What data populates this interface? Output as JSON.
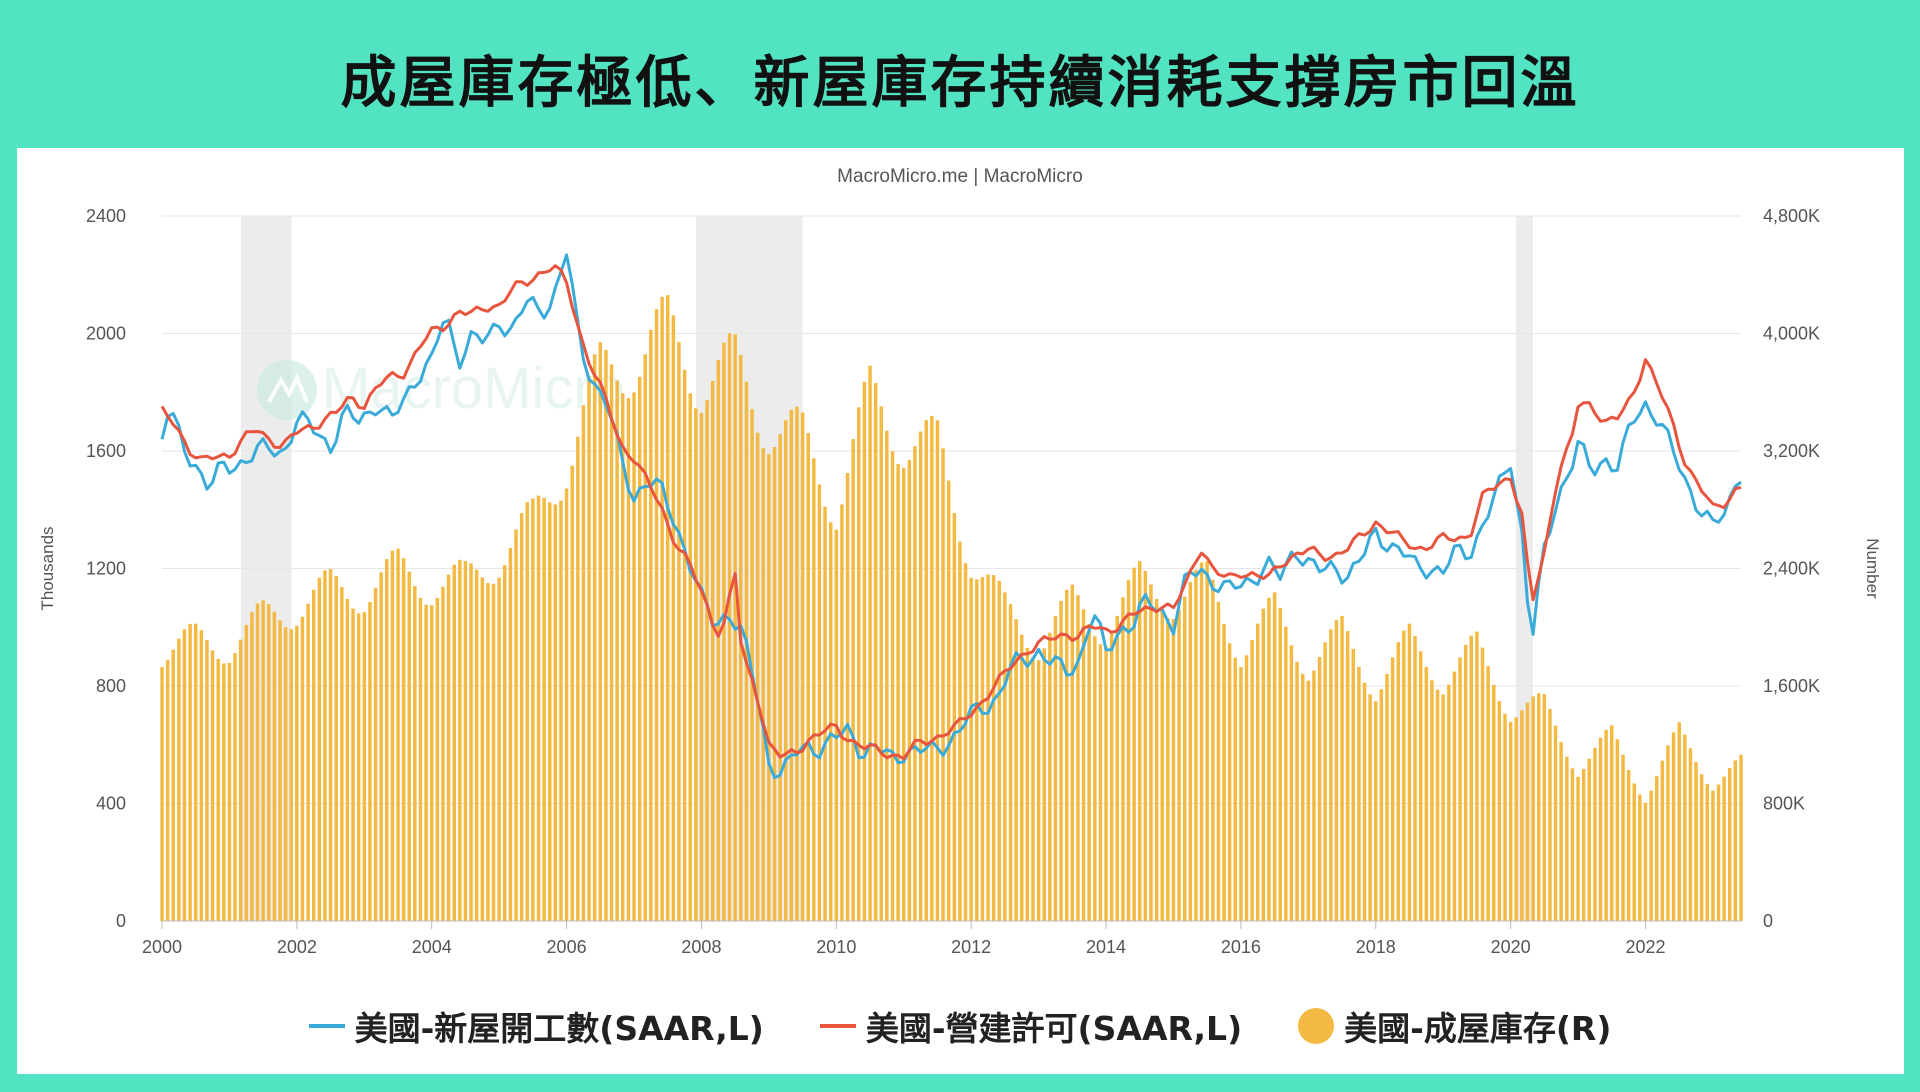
{
  "title": "成屋庫存極低、新屋庫存持續消耗支撐房市回溫",
  "chart_data": {
    "type": "bar+line",
    "source_label": "MacroMicro.me | MacroMicro",
    "watermark": "MacroMicro",
    "x_ticks": [
      "2000",
      "2002",
      "2004",
      "2006",
      "2008",
      "2010",
      "2012",
      "2014",
      "2016",
      "2018",
      "2020",
      "2022"
    ],
    "x_range": [
      "2000-01",
      "2023-06"
    ],
    "left_axis": {
      "label": "Thousands",
      "ticks": [
        "0",
        "400",
        "800",
        "1200",
        "1600",
        "2000",
        "2400"
      ],
      "range": [
        0,
        2400
      ]
    },
    "right_axis": {
      "label": "Number",
      "ticks": [
        "0",
        "800K",
        "1,600K",
        "2,400K",
        "3,200K",
        "4,000K",
        "4,800K"
      ],
      "range": [
        0,
        4800000
      ]
    },
    "grid": true,
    "recessions": [
      [
        2001.17,
        2001.92
      ],
      [
        2007.92,
        2009.5
      ],
      [
        2020.08,
        2020.33
      ]
    ],
    "legend_position": "bottom",
    "colors": {
      "starts": "#3aabd8",
      "permits": "#e8553e",
      "inventory": "#f4b942",
      "recession": "#ececec",
      "grid": "#e6e6e6"
    },
    "series": [
      {
        "name": "美國-新屋開工數(SAAR,L)",
        "type": "line",
        "axis": "left",
        "color": "#3aabd8",
        "points": [
          [
            2000.0,
            1640
          ],
          [
            2000.1,
            1740
          ],
          [
            2000.3,
            1620
          ],
          [
            2000.5,
            1560
          ],
          [
            2000.7,
            1470
          ],
          [
            2000.9,
            1540
          ],
          [
            2001.1,
            1560
          ],
          [
            2001.4,
            1590
          ],
          [
            2001.6,
            1610
          ],
          [
            2001.8,
            1600
          ],
          [
            2002.0,
            1700
          ],
          [
            2002.3,
            1670
          ],
          [
            2002.5,
            1620
          ],
          [
            2002.7,
            1720
          ],
          [
            2002.9,
            1700
          ],
          [
            2003.2,
            1770
          ],
          [
            2003.4,
            1690
          ],
          [
            2003.6,
            1780
          ],
          [
            2003.8,
            1870
          ],
          [
            2004.0,
            1900
          ],
          [
            2004.2,
            2060
          ],
          [
            2004.4,
            1920
          ],
          [
            2004.6,
            1990
          ],
          [
            2004.8,
            1960
          ],
          [
            2005.0,
            2050
          ],
          [
            2005.2,
            2010
          ],
          [
            2005.4,
            2100
          ],
          [
            2005.6,
            2080
          ],
          [
            2005.8,
            2120
          ],
          [
            2006.0,
            2270
          ],
          [
            2006.2,
            1960
          ],
          [
            2006.4,
            1840
          ],
          [
            2006.6,
            1760
          ],
          [
            2006.8,
            1570
          ],
          [
            2007.0,
            1450
          ],
          [
            2007.2,
            1500
          ],
          [
            2007.4,
            1460
          ],
          [
            2007.6,
            1370
          ],
          [
            2007.8,
            1240
          ],
          [
            2008.0,
            1090
          ],
          [
            2008.2,
            1010
          ],
          [
            2008.4,
            1060
          ],
          [
            2008.6,
            970
          ],
          [
            2008.8,
            800
          ],
          [
            2009.0,
            550
          ],
          [
            2009.2,
            490
          ],
          [
            2009.4,
            570
          ],
          [
            2009.6,
            610
          ],
          [
            2009.8,
            580
          ],
          [
            2010.0,
            620
          ],
          [
            2010.2,
            660
          ],
          [
            2010.4,
            570
          ],
          [
            2010.6,
            580
          ],
          [
            2010.8,
            560
          ],
          [
            2011.0,
            580
          ],
          [
            2011.2,
            570
          ],
          [
            2011.4,
            580
          ],
          [
            2011.6,
            610
          ],
          [
            2011.8,
            630
          ],
          [
            2012.0,
            700
          ],
          [
            2012.2,
            740
          ],
          [
            2012.4,
            760
          ],
          [
            2012.6,
            860
          ],
          [
            2012.8,
            900
          ],
          [
            2013.0,
            920
          ],
          [
            2013.2,
            870
          ],
          [
            2013.4,
            850
          ],
          [
            2013.6,
            890
          ],
          [
            2013.8,
            1050
          ],
          [
            2014.0,
            910
          ],
          [
            2014.2,
            1000
          ],
          [
            2014.4,
            1010
          ],
          [
            2014.6,
            1080
          ],
          [
            2014.8,
            1070
          ],
          [
            2015.0,
            1010
          ],
          [
            2015.2,
            1160
          ],
          [
            2015.4,
            1200
          ],
          [
            2015.6,
            1160
          ],
          [
            2015.8,
            1120
          ],
          [
            2016.0,
            1140
          ],
          [
            2016.2,
            1180
          ],
          [
            2016.4,
            1210
          ],
          [
            2016.6,
            1160
          ],
          [
            2016.8,
            1280
          ],
          [
            2017.0,
            1220
          ],
          [
            2017.2,
            1180
          ],
          [
            2017.4,
            1210
          ],
          [
            2017.6,
            1180
          ],
          [
            2017.8,
            1230
          ],
          [
            2018.0,
            1320
          ],
          [
            2018.2,
            1290
          ],
          [
            2018.4,
            1250
          ],
          [
            2018.6,
            1200
          ],
          [
            2018.8,
            1210
          ],
          [
            2019.0,
            1190
          ],
          [
            2019.2,
            1250
          ],
          [
            2019.4,
            1260
          ],
          [
            2019.6,
            1360
          ],
          [
            2019.8,
            1450
          ],
          [
            2020.0,
            1570
          ],
          [
            2020.2,
            1280
          ],
          [
            2020.3,
            930
          ],
          [
            2020.5,
            1250
          ],
          [
            2020.7,
            1450
          ],
          [
            2020.9,
            1560
          ],
          [
            2021.0,
            1620
          ],
          [
            2021.2,
            1520
          ],
          [
            2021.4,
            1580
          ],
          [
            2021.6,
            1550
          ],
          [
            2021.8,
            1690
          ],
          [
            2022.0,
            1760
          ],
          [
            2022.2,
            1720
          ],
          [
            2022.4,
            1590
          ],
          [
            2022.6,
            1490
          ],
          [
            2022.8,
            1420
          ],
          [
            2023.0,
            1340
          ],
          [
            2023.2,
            1380
          ],
          [
            2023.4,
            1560
          ],
          [
            2023.5,
            1430
          ]
        ]
      },
      {
        "name": "美國-營建許可(SAAR,L)",
        "type": "line",
        "axis": "left",
        "color": "#e8553e",
        "points": [
          [
            2000.0,
            1730
          ],
          [
            2000.2,
            1690
          ],
          [
            2000.4,
            1610
          ],
          [
            2000.6,
            1560
          ],
          [
            2000.8,
            1580
          ],
          [
            2001.0,
            1590
          ],
          [
            2001.2,
            1640
          ],
          [
            2001.4,
            1670
          ],
          [
            2001.6,
            1640
          ],
          [
            2001.8,
            1620
          ],
          [
            2002.0,
            1660
          ],
          [
            2002.2,
            1680
          ],
          [
            2002.4,
            1710
          ],
          [
            2002.6,
            1730
          ],
          [
            2002.8,
            1780
          ],
          [
            2003.0,
            1760
          ],
          [
            2003.2,
            1820
          ],
          [
            2003.4,
            1850
          ],
          [
            2003.6,
            1870
          ],
          [
            2003.8,
            1950
          ],
          [
            2004.0,
            2000
          ],
          [
            2004.2,
            2030
          ],
          [
            2004.4,
            2080
          ],
          [
            2004.6,
            2060
          ],
          [
            2004.8,
            2090
          ],
          [
            2005.0,
            2100
          ],
          [
            2005.2,
            2150
          ],
          [
            2005.4,
            2170
          ],
          [
            2005.6,
            2210
          ],
          [
            2005.8,
            2230
          ],
          [
            2006.0,
            2170
          ],
          [
            2006.2,
            2000
          ],
          [
            2006.4,
            1870
          ],
          [
            2006.6,
            1760
          ],
          [
            2006.8,
            1620
          ],
          [
            2007.0,
            1580
          ],
          [
            2007.2,
            1490
          ],
          [
            2007.4,
            1410
          ],
          [
            2007.6,
            1300
          ],
          [
            2007.8,
            1220
          ],
          [
            2008.0,
            1120
          ],
          [
            2008.2,
            1000
          ],
          [
            2008.3,
            980
          ],
          [
            2008.5,
            1180
          ],
          [
            2008.6,
            900
          ],
          [
            2008.8,
            800
          ],
          [
            2009.0,
            600
          ],
          [
            2009.2,
            550
          ],
          [
            2009.4,
            580
          ],
          [
            2009.6,
            620
          ],
          [
            2009.8,
            640
          ],
          [
            2010.0,
            660
          ],
          [
            2010.2,
            620
          ],
          [
            2010.4,
            590
          ],
          [
            2010.6,
            580
          ],
          [
            2010.8,
            570
          ],
          [
            2011.0,
            560
          ],
          [
            2011.2,
            600
          ],
          [
            2011.4,
            620
          ],
          [
            2011.6,
            640
          ],
          [
            2011.8,
            660
          ],
          [
            2012.0,
            710
          ],
          [
            2012.2,
            760
          ],
          [
            2012.4,
            810
          ],
          [
            2012.6,
            870
          ],
          [
            2012.8,
            920
          ],
          [
            2013.0,
            940
          ],
          [
            2013.2,
            960
          ],
          [
            2013.4,
            980
          ],
          [
            2013.6,
            970
          ],
          [
            2013.8,
            1000
          ],
          [
            2014.0,
            990
          ],
          [
            2014.2,
            1010
          ],
          [
            2014.4,
            1040
          ],
          [
            2014.6,
            1060
          ],
          [
            2014.8,
            1080
          ],
          [
            2015.0,
            1060
          ],
          [
            2015.2,
            1150
          ],
          [
            2015.4,
            1280
          ],
          [
            2015.6,
            1190
          ],
          [
            2015.8,
            1160
          ],
          [
            2016.0,
            1190
          ],
          [
            2016.2,
            1180
          ],
          [
            2016.4,
            1160
          ],
          [
            2016.6,
            1220
          ],
          [
            2016.8,
            1250
          ],
          [
            2017.0,
            1260
          ],
          [
            2017.2,
            1240
          ],
          [
            2017.4,
            1250
          ],
          [
            2017.6,
            1270
          ],
          [
            2017.8,
            1310
          ],
          [
            2018.0,
            1360
          ],
          [
            2018.2,
            1330
          ],
          [
            2018.4,
            1290
          ],
          [
            2018.6,
            1270
          ],
          [
            2018.8,
            1280
          ],
          [
            2019.0,
            1300
          ],
          [
            2019.2,
            1300
          ],
          [
            2019.4,
            1320
          ],
          [
            2019.6,
            1450
          ],
          [
            2019.8,
            1480
          ],
          [
            2020.0,
            1520
          ],
          [
            2020.2,
            1350
          ],
          [
            2020.3,
            1060
          ],
          [
            2020.5,
            1250
          ],
          [
            2020.7,
            1530
          ],
          [
            2020.9,
            1630
          ],
          [
            2021.0,
            1750
          ],
          [
            2021.2,
            1760
          ],
          [
            2021.4,
            1700
          ],
          [
            2021.6,
            1710
          ],
          [
            2021.8,
            1780
          ],
          [
            2022.0,
            1920
          ],
          [
            2022.2,
            1810
          ],
          [
            2022.4,
            1690
          ],
          [
            2022.6,
            1560
          ],
          [
            2022.8,
            1480
          ],
          [
            2023.0,
            1400
          ],
          [
            2023.2,
            1430
          ],
          [
            2023.4,
            1490
          ],
          [
            2023.5,
            1440
          ]
        ]
      },
      {
        "name": "美國-成屋庫存(R)",
        "type": "bar",
        "axis": "right",
        "color": "#f4b942",
        "points": [
          [
            2000.0,
            1850000
          ],
          [
            2000.5,
            1900000
          ],
          [
            2001.0,
            1880000
          ],
          [
            2001.5,
            2050000
          ],
          [
            2002.0,
            2150000
          ],
          [
            2002.5,
            2250000
          ],
          [
            2003.0,
            2250000
          ],
          [
            2003.5,
            2380000
          ],
          [
            2004.0,
            2300000
          ],
          [
            2004.5,
            2300000
          ],
          [
            2005.0,
            2500000
          ],
          [
            2005.5,
            2700000
          ],
          [
            2006.0,
            3150000
          ],
          [
            2006.5,
            3700000
          ],
          [
            2007.0,
            3850000
          ],
          [
            2007.5,
            4000000
          ],
          [
            2008.0,
            3700000
          ],
          [
            2008.5,
            3750000
          ],
          [
            2009.0,
            3400000
          ],
          [
            2009.5,
            3250000
          ],
          [
            2010.0,
            2850000
          ],
          [
            2010.5,
            3550000
          ],
          [
            2011.0,
            3300000
          ],
          [
            2011.5,
            3200000
          ],
          [
            2012.0,
            2500000
          ],
          [
            2012.5,
            2100000
          ],
          [
            2013.0,
            1900000
          ],
          [
            2013.5,
            2150000
          ],
          [
            2014.0,
            2000000
          ],
          [
            2014.5,
            2300000
          ],
          [
            2015.0,
            2200000
          ],
          [
            2015.5,
            2300000
          ],
          [
            2016.0,
            1850000
          ],
          [
            2016.5,
            2100000
          ],
          [
            2017.0,
            1750000
          ],
          [
            2017.5,
            1950000
          ],
          [
            2018.0,
            1600000
          ],
          [
            2018.5,
            1900000
          ],
          [
            2019.0,
            1650000
          ],
          [
            2019.5,
            1850000
          ],
          [
            2020.0,
            1450000
          ],
          [
            2020.5,
            1450000
          ],
          [
            2021.0,
            1050000
          ],
          [
            2021.5,
            1250000
          ],
          [
            2022.0,
            860000
          ],
          [
            2022.5,
            1270000
          ],
          [
            2023.0,
            950000
          ],
          [
            2023.5,
            1080000
          ]
        ]
      }
    ]
  }
}
